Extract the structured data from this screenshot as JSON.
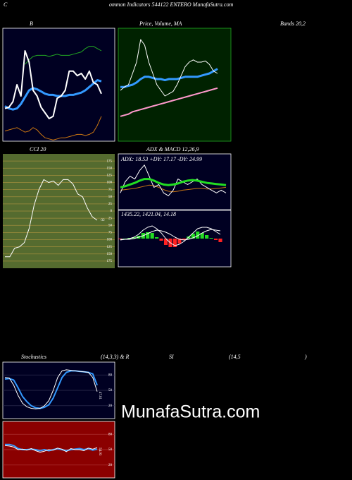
{
  "header": {
    "initial": "C",
    "title": "ommon Indicators 544122 ENTERO MunafaSutra.com"
  },
  "watermark": "MunafaSutra.com",
  "chart_data": [
    {
      "type": "line",
      "title": "B",
      "title_tail": "Bands 20,2",
      "background": "#000022",
      "ylim": [
        0,
        100
      ],
      "series": [
        {
          "color": "#22aa22",
          "width": 1,
          "values": [
            null,
            null,
            null,
            null,
            null,
            68,
            72,
            75,
            76,
            76,
            76,
            75,
            76,
            77,
            76,
            76,
            76,
            77,
            78,
            79,
            82,
            84,
            84,
            82,
            80
          ]
        },
        {
          "color": "#3399ff",
          "width": 3,
          "values": [
            31,
            29,
            28,
            29,
            33,
            39,
            45,
            47,
            46,
            44,
            42,
            41,
            41,
            40,
            40,
            40,
            41,
            41,
            42,
            43,
            45,
            48,
            51,
            54,
            53
          ]
        },
        {
          "color": "#ffffff",
          "width": 2,
          "values": [
            29,
            30,
            35,
            50,
            40,
            80,
            70,
            45,
            40,
            30,
            25,
            20,
            22,
            38,
            40,
            45,
            62,
            62,
            58,
            60,
            55,
            62,
            52,
            50,
            42
          ]
        },
        {
          "color": "#cc7711",
          "width": 1,
          "values": [
            9,
            10,
            11,
            12,
            10,
            8,
            9,
            12,
            10,
            6,
            3,
            2,
            1,
            2,
            3,
            3,
            4,
            5,
            6,
            6,
            5,
            6,
            8,
            14,
            22
          ]
        }
      ]
    },
    {
      "type": "line",
      "title": "Price, Volume, MA",
      "background": "#002200",
      "ylim": [
        0,
        100
      ],
      "series": [
        {
          "color": "#3399ff",
          "width": 3,
          "values": [
            48,
            48,
            49,
            50,
            52,
            55,
            57,
            57,
            56,
            55,
            55,
            54,
            55,
            55,
            55,
            56,
            57,
            57,
            57,
            57,
            58,
            59,
            60,
            62,
            64
          ]
        },
        {
          "color": "#ffffff",
          "width": 1,
          "values": [
            45,
            48,
            50,
            60,
            70,
            90,
            85,
            70,
            60,
            50,
            45,
            40,
            42,
            44,
            50,
            58,
            66,
            70,
            72,
            70,
            70,
            71,
            68,
            62,
            60
          ]
        },
        {
          "color": "#ff99cc",
          "width": 2,
          "values": [
            22,
            23,
            24,
            26,
            27,
            28,
            29,
            30,
            31,
            32,
            33,
            34,
            35,
            36,
            37,
            38,
            39,
            40,
            41,
            42,
            43,
            44,
            45,
            46,
            47
          ]
        }
      ]
    },
    {
      "type": "line",
      "title": "CCI 20",
      "background": "#556b2f",
      "grid": true,
      "grid_color": "#a08c3c",
      "ylim": [
        -200,
        200
      ],
      "yticks": [
        175,
        150,
        125,
        100,
        75,
        50,
        25,
        0,
        {
          "value": -25,
          "label": "25"
        },
        {
          "value": -50,
          "label": "50"
        },
        {
          "value": -75,
          "label": "75"
        },
        {
          "value": -100,
          "label": "100"
        },
        {
          "value": -125,
          "label": "125"
        },
        {
          "value": -150,
          "label": "150"
        },
        {
          "value": -175,
          "label": "175"
        }
      ],
      "series": [
        {
          "color": "#ffffff",
          "width": 1,
          "values": [
            -160,
            -160,
            -130,
            -125,
            -110,
            -60,
            20,
            75,
            110,
            100,
            105,
            90,
            110,
            110,
            95,
            60,
            50,
            10,
            -20,
            -32
          ],
          "value_labels": [
            null,
            null,
            null,
            null,
            null,
            null,
            null,
            null,
            null,
            null,
            null,
            null,
            null,
            null,
            null,
            null,
            null,
            null,
            null,
            "-32"
          ]
        }
      ]
    },
    {
      "type": "line",
      "title": "ADX  & MACD 12,26,9",
      "subtitle": "ADX: 18.53 +DY: 17.17 -DY: 24.99",
      "background": "#000022",
      "ylim": [
        0,
        100
      ],
      "series": [
        {
          "color": "#cc7711",
          "width": 1,
          "values": [
            35,
            36,
            37,
            38,
            40,
            42,
            44,
            43,
            40,
            36,
            33,
            32,
            33,
            35,
            36,
            37,
            38,
            38,
            37,
            37,
            38,
            39,
            40
          ]
        },
        {
          "color": "#ffffff",
          "width": 1,
          "values": [
            30,
            50,
            60,
            55,
            70,
            80,
            60,
            40,
            45,
            30,
            25,
            35,
            55,
            50,
            45,
            50,
            55,
            45,
            40,
            35,
            30,
            35,
            30
          ]
        },
        {
          "color": "#22dd22",
          "width": 3,
          "values": [
            40,
            42,
            45,
            48,
            52,
            55,
            55,
            52,
            48,
            45,
            44,
            45,
            47,
            50,
            52,
            53,
            52,
            50,
            48,
            47,
            46,
            45,
            44
          ]
        }
      ]
    },
    {
      "type": "line",
      "subtitle": "1435.22, 1421.04, 14.18",
      "background": "#000022",
      "ylim": [
        -40,
        40
      ],
      "series": [
        {
          "style": "bar",
          "color": "#22dd22",
          "negative_color": "#ff2222",
          "values": [
            -1,
            0,
            1,
            2,
            4,
            8,
            9,
            8,
            2,
            -3,
            -9,
            -12,
            -12,
            -7,
            -2,
            3,
            7,
            10,
            8,
            5,
            1,
            -2,
            -5
          ]
        },
        {
          "color": "#ffffff",
          "width": 1,
          "values": [
            -2,
            -1,
            0,
            2,
            6,
            12,
            16,
            18,
            14,
            8,
            0,
            -6,
            -10,
            -8,
            -4,
            2,
            8,
            14,
            16,
            16,
            14,
            10,
            6
          ]
        },
        {
          "color": "#ffffff",
          "width": 1,
          "values": [
            -1,
            -1,
            -1,
            0,
            2,
            4,
            7,
            10,
            12,
            11,
            9,
            6,
            2,
            -1,
            -2,
            -1,
            1,
            4,
            8,
            11,
            13,
            12,
            11
          ]
        }
      ]
    },
    {
      "type": "line",
      "title": "Stochastics",
      "title_parts": [
        "(14,3,3) & R",
        "SI",
        "(14,5",
        ")"
      ],
      "background": "#000022",
      "grid": true,
      "grid_color": "#333355",
      "ylim": [
        -5,
        105
      ],
      "yticks": [
        80,
        50,
        20
      ],
      "series": [
        {
          "color": "#3399ff",
          "width": 2,
          "values": [
            72,
            73,
            70,
            55,
            38,
            28,
            20,
            16,
            15,
            17,
            22,
            35,
            55,
            75,
            85,
            88,
            88,
            87,
            86,
            85,
            82,
            60
          ]
        },
        {
          "color": "#ffffff",
          "width": 1,
          "values": [
            75,
            74,
            60,
            40,
            25,
            18,
            15,
            14,
            15,
            20,
            30,
            50,
            75,
            88,
            90,
            89,
            88,
            87,
            86,
            85,
            75,
            47.61
          ],
          "value_labels": [
            null,
            null,
            null,
            null,
            null,
            null,
            null,
            null,
            null,
            null,
            null,
            null,
            null,
            null,
            null,
            null,
            null,
            null,
            null,
            null,
            null,
            "47.61"
          ]
        }
      ]
    },
    {
      "type": "line",
      "background": "#8b0000",
      "grid": true,
      "grid_color": "#b03a3a",
      "ylim": [
        -5,
        105
      ],
      "yticks": [
        80,
        50,
        20
      ],
      "series": [
        {
          "color": "#3399ff",
          "width": 2,
          "values": [
            60,
            60,
            58,
            52,
            50,
            50,
            51,
            50,
            48,
            50,
            48,
            50,
            52,
            50,
            48,
            50,
            51,
            52,
            50,
            52,
            49,
            51
          ]
        },
        {
          "color": "#ffffff",
          "width": 1,
          "values": [
            58,
            57,
            55,
            50,
            51,
            49,
            52,
            48,
            45,
            47,
            50,
            49,
            53,
            51,
            46,
            52,
            50,
            50,
            48,
            53,
            51,
            54.03
          ],
          "value_labels": [
            null,
            null,
            null,
            null,
            null,
            null,
            null,
            null,
            null,
            null,
            null,
            null,
            null,
            null,
            null,
            null,
            null,
            null,
            null,
            null,
            null,
            "54.03"
          ]
        }
      ]
    }
  ]
}
